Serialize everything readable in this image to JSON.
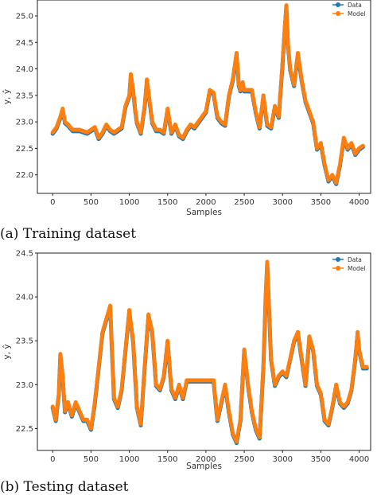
{
  "figure": {
    "captions": [
      "(a) Training dataset",
      "(b) Testing dataset"
    ]
  },
  "chart_data": [
    {
      "type": "line",
      "title": "",
      "xlabel": "Samples",
      "ylabel": "y, ŷ",
      "xlim": [
        -200,
        4150
      ],
      "ylim": [
        21.65,
        25.3
      ],
      "xticks": [
        0,
        500,
        1000,
        1500,
        2000,
        2500,
        3000,
        3500,
        4000
      ],
      "yticks": [
        22.0,
        22.5,
        23.0,
        23.5,
        24.0,
        24.5,
        25.0
      ],
      "legend_position": "top-right",
      "grid": false,
      "series": [
        {
          "name": "Data",
          "color": "#1f77b4",
          "marker": "circle"
        },
        {
          "name": "Model",
          "color": "#ff7f0e",
          "marker": "circle"
        }
      ],
      "x": [
        0,
        50,
        100,
        130,
        160,
        200,
        260,
        350,
        450,
        550,
        600,
        650,
        700,
        750,
        800,
        850,
        900,
        950,
        1000,
        1020,
        1050,
        1080,
        1100,
        1150,
        1200,
        1230,
        1260,
        1300,
        1350,
        1400,
        1450,
        1500,
        1550,
        1600,
        1650,
        1700,
        1750,
        1800,
        1850,
        1900,
        1950,
        2000,
        2050,
        2100,
        2150,
        2200,
        2250,
        2300,
        2350,
        2400,
        2430,
        2450,
        2480,
        2500,
        2550,
        2600,
        2650,
        2700,
        2750,
        2800,
        2850,
        2900,
        2950,
        3000,
        3030,
        3050,
        3070,
        3100,
        3150,
        3200,
        3250,
        3300,
        3350,
        3400,
        3450,
        3500,
        3550,
        3600,
        3650,
        3700,
        3750,
        3800,
        3850,
        3900,
        3950,
        4000,
        4050
      ],
      "values": [
        22.8,
        22.9,
        23.1,
        23.25,
        23.0,
        22.95,
        22.85,
        22.85,
        22.8,
        22.9,
        22.7,
        22.8,
        22.95,
        22.85,
        22.8,
        22.85,
        22.9,
        23.3,
        23.5,
        23.9,
        23.6,
        23.2,
        23.0,
        22.8,
        23.3,
        23.8,
        23.45,
        23.0,
        22.85,
        22.85,
        22.8,
        23.25,
        22.8,
        22.95,
        22.75,
        22.7,
        22.85,
        22.95,
        22.9,
        23.0,
        23.1,
        23.2,
        23.6,
        23.55,
        23.1,
        23.0,
        22.95,
        23.5,
        23.8,
        24.3,
        23.7,
        23.6,
        23.75,
        23.6,
        23.6,
        23.6,
        23.2,
        22.9,
        23.5,
        22.95,
        22.9,
        23.3,
        23.1,
        24.1,
        24.8,
        25.2,
        24.5,
        24.0,
        23.7,
        24.3,
        23.8,
        23.4,
        23.2,
        23.0,
        22.5,
        22.6,
        22.2,
        21.9,
        22.0,
        21.85,
        22.2,
        22.7,
        22.5,
        22.6,
        22.4,
        22.5,
        22.55
      ]
    },
    {
      "type": "line",
      "title": "",
      "xlabel": "Samples",
      "ylabel": "y, ŷ",
      "xlim": [
        -200,
        4150
      ],
      "ylim": [
        22.25,
        24.5
      ],
      "xticks": [
        0,
        500,
        1000,
        1500,
        2000,
        2500,
        3000,
        3500,
        4000
      ],
      "yticks": [
        22.5,
        23.0,
        23.5,
        24.0,
        24.5
      ],
      "legend_position": "top-right",
      "grid": false,
      "series": [
        {
          "name": "Data",
          "color": "#1f77b4",
          "marker": "circle"
        },
        {
          "name": "Model",
          "color": "#ff7f0e",
          "marker": "circle"
        }
      ],
      "x": [
        0,
        40,
        80,
        100,
        130,
        160,
        200,
        250,
        300,
        350,
        400,
        450,
        500,
        550,
        600,
        650,
        700,
        750,
        800,
        850,
        900,
        950,
        1000,
        1050,
        1100,
        1150,
        1200,
        1250,
        1300,
        1350,
        1400,
        1450,
        1500,
        1550,
        1600,
        1650,
        1700,
        1750,
        1800,
        1850,
        1900,
        1950,
        2000,
        2050,
        2100,
        2150,
        2200,
        2250,
        2300,
        2350,
        2400,
        2450,
        2500,
        2550,
        2600,
        2650,
        2700,
        2750,
        2780,
        2800,
        2850,
        2900,
        2950,
        3000,
        3050,
        3100,
        3150,
        3200,
        3250,
        3300,
        3350,
        3400,
        3450,
        3500,
        3550,
        3600,
        3650,
        3700,
        3750,
        3800,
        3850,
        3900,
        3950,
        3980,
        4000,
        4050,
        4100
      ],
      "values": [
        22.75,
        22.6,
        22.9,
        23.35,
        23.1,
        22.7,
        22.8,
        22.65,
        22.8,
        22.7,
        22.6,
        22.6,
        22.5,
        22.8,
        23.2,
        23.6,
        23.75,
        23.9,
        22.85,
        22.75,
        22.95,
        23.4,
        23.85,
        23.5,
        22.75,
        22.55,
        23.2,
        23.8,
        23.6,
        23.0,
        22.95,
        23.1,
        23.5,
        22.95,
        22.85,
        23.0,
        22.85,
        23.05,
        23.05,
        23.05,
        23.05,
        23.05,
        23.05,
        23.05,
        23.05,
        22.6,
        22.8,
        23.0,
        22.7,
        22.45,
        22.35,
        22.6,
        23.4,
        23.0,
        22.7,
        22.5,
        22.4,
        23.2,
        24.0,
        24.4,
        23.3,
        23.0,
        23.1,
        23.15,
        23.1,
        23.3,
        23.5,
        23.6,
        23.3,
        23.0,
        23.55,
        23.4,
        23.0,
        22.9,
        22.6,
        22.55,
        22.75,
        23.0,
        22.8,
        22.75,
        22.8,
        22.95,
        23.3,
        23.6,
        23.4,
        23.2,
        23.2
      ]
    }
  ]
}
